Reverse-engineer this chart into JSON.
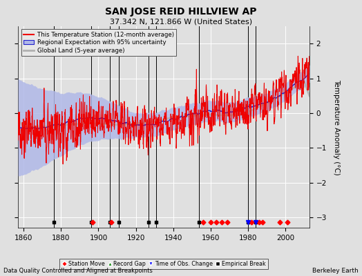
{
  "title": "SAN JOSE REID HILLVIEW AP",
  "subtitle": "37.342 N, 121.866 W (United States)",
  "ylabel": "Temperature Anomaly (°C)",
  "xlabel_footer": "Data Quality Controlled and Aligned at Breakpoints",
  "footer_right": "Berkeley Earth",
  "year_start": 1857,
  "year_end": 2013,
  "ylim": [
    -3.3,
    2.5
  ],
  "yticks": [
    -3,
    -2,
    -1,
    0,
    1,
    2
  ],
  "xticks": [
    1860,
    1880,
    1900,
    1920,
    1940,
    1960,
    1980,
    2000
  ],
  "bg_color": "#e0e0e0",
  "plot_bg_color": "#e0e0e0",
  "grid_color": "#ffffff",
  "station_color": "#ee0000",
  "regional_color": "#2222cc",
  "regional_fill_color": "#b0b8e8",
  "global_color": "#b0b0b0",
  "vertical_line_color": "#000000",
  "legend_entries": [
    "This Temperature Station (12-month average)",
    "Regional Expectation with 95% uncertainty",
    "Global Land (5-year average)"
  ],
  "empirical_breaks": [
    1876,
    1896,
    1906,
    1911,
    1927,
    1931,
    1954,
    1980,
    1984
  ],
  "station_moves": [
    1897,
    1907,
    1956,
    1960,
    1963,
    1966,
    1969,
    1982,
    1986,
    1988,
    1997,
    2001
  ],
  "obs_changes": [
    1980,
    1984
  ],
  "record_gaps": [],
  "random_seed": 17
}
